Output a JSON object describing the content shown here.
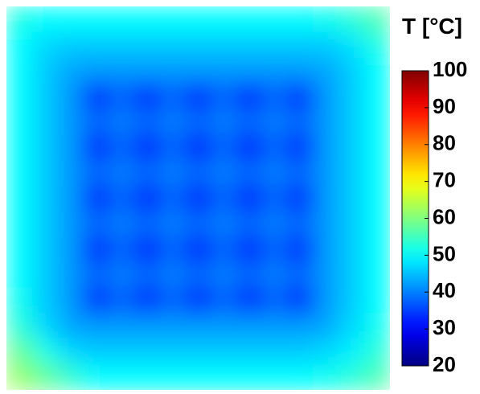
{
  "chart_data": {
    "type": "heatmap",
    "colorbar_title": "T [°C]",
    "colormap": "jet",
    "zlim": [
      20,
      100
    ],
    "zticks": [
      20,
      30,
      40,
      50,
      60,
      70,
      80,
      90,
      100
    ],
    "z": [
      [
        52,
        50,
        50,
        50,
        50,
        50,
        50,
        50,
        50,
        50,
        50,
        50,
        51,
        53,
        56
      ],
      [
        50,
        47,
        46,
        46,
        46,
        46,
        46,
        46,
        46,
        46,
        46,
        46,
        46,
        48,
        52
      ],
      [
        50,
        46,
        43,
        42,
        42,
        42,
        42,
        42,
        42,
        42,
        42,
        42,
        43,
        46,
        50
      ],
      [
        50,
        46,
        42,
        32,
        38,
        32,
        38,
        32,
        38,
        32,
        38,
        32,
        42,
        46,
        50
      ],
      [
        50,
        46,
        42,
        38,
        40,
        38,
        40,
        38,
        40,
        38,
        40,
        38,
        42,
        46,
        50
      ],
      [
        50,
        46,
        42,
        32,
        38,
        32,
        38,
        32,
        38,
        32,
        38,
        32,
        42,
        46,
        50
      ],
      [
        50,
        46,
        42,
        38,
        40,
        38,
        40,
        38,
        40,
        38,
        40,
        38,
        42,
        46,
        50
      ],
      [
        50,
        46,
        42,
        32,
        38,
        32,
        38,
        32,
        38,
        32,
        38,
        32,
        42,
        46,
        50
      ],
      [
        50,
        46,
        42,
        38,
        40,
        38,
        40,
        38,
        40,
        38,
        40,
        38,
        42,
        46,
        50
      ],
      [
        50,
        46,
        42,
        32,
        38,
        32,
        38,
        32,
        38,
        32,
        38,
        32,
        42,
        46,
        50
      ],
      [
        50,
        46,
        42,
        38,
        40,
        38,
        40,
        38,
        40,
        38,
        40,
        38,
        42,
        46,
        50
      ],
      [
        51,
        46,
        42,
        32,
        38,
        32,
        38,
        32,
        38,
        32,
        38,
        32,
        42,
        46,
        50
      ],
      [
        53,
        47,
        43,
        42,
        42,
        42,
        42,
        42,
        42,
        42,
        42,
        42,
        43,
        47,
        51
      ],
      [
        58,
        52,
        47,
        46,
        46,
        46,
        46,
        46,
        46,
        46,
        46,
        46,
        47,
        49,
        53
      ],
      [
        62,
        58,
        54,
        50,
        50,
        50,
        50,
        50,
        50,
        50,
        50,
        50,
        51,
        53,
        56
      ]
    ]
  }
}
